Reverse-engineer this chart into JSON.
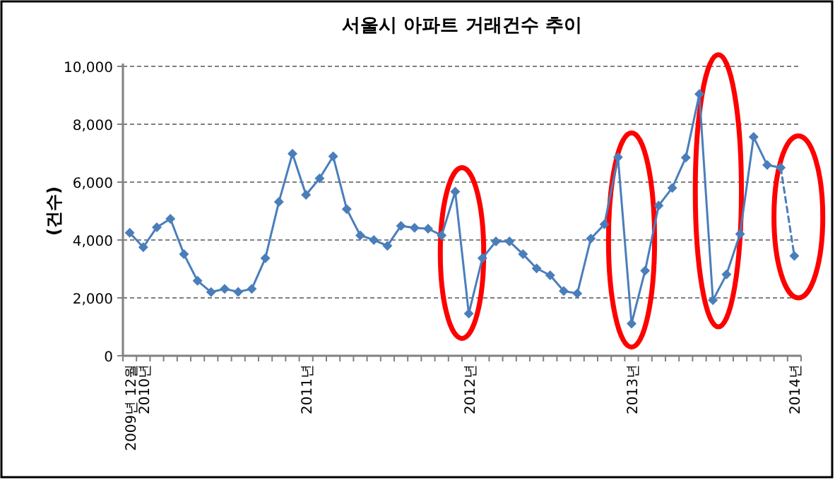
{
  "chart_data": {
    "type": "line",
    "title": "서울시 아파트 거래건수 추이",
    "ylabel": "(건수)",
    "categories": [
      "2009년 12월",
      "2010년",
      null,
      null,
      null,
      null,
      null,
      null,
      null,
      null,
      null,
      null,
      null,
      "2011년",
      null,
      null,
      null,
      null,
      null,
      null,
      null,
      null,
      null,
      null,
      null,
      "2012년",
      null,
      null,
      null,
      null,
      null,
      null,
      null,
      null,
      null,
      null,
      null,
      "2013년",
      null,
      null,
      null,
      null,
      null,
      null,
      null,
      null,
      null,
      null,
      null,
      "2014년"
    ],
    "series": [
      {
        "color": "#4a7ebb",
        "line_style": "solid",
        "values": [
          4250,
          3750,
          4440,
          4730,
          3510,
          2590,
          2200,
          2310,
          2210,
          2310,
          3370,
          5320,
          6980,
          5560,
          6130,
          6890,
          5070,
          4160,
          4000,
          3800,
          4490,
          4420,
          4390,
          4160,
          5670,
          1460,
          3370,
          3950,
          3950,
          3510,
          3020,
          2780,
          2240,
          2150,
          4050,
          4540,
          6860,
          1110,
          2940,
          5190,
          5800,
          6850,
          9040,
          1920,
          2810,
          4210,
          7560,
          6590,
          6500,
          null
        ]
      },
      {
        "color": "#4a7ebb",
        "line_style": "dashed",
        "values": [
          null,
          null,
          null,
          null,
          null,
          null,
          null,
          null,
          null,
          null,
          null,
          null,
          null,
          null,
          null,
          null,
          null,
          null,
          null,
          null,
          null,
          null,
          null,
          null,
          null,
          null,
          null,
          null,
          null,
          null,
          null,
          null,
          null,
          null,
          null,
          null,
          null,
          null,
          null,
          null,
          null,
          null,
          null,
          null,
          null,
          null,
          null,
          null,
          6500,
          3450
        ]
      }
    ],
    "ylim": [
      0,
      10000
    ],
    "yticks": [
      0,
      {
        "value": 2000,
        "label": "2,000"
      },
      {
        "value": 4000,
        "label": "4,000"
      },
      {
        "value": 6000,
        "label": "6,000"
      },
      {
        "value": 8000,
        "label": "8,000"
      },
      {
        "value": 10000,
        "label": "10,000"
      }
    ],
    "grid": "y",
    "marker": "diamond"
  }
}
